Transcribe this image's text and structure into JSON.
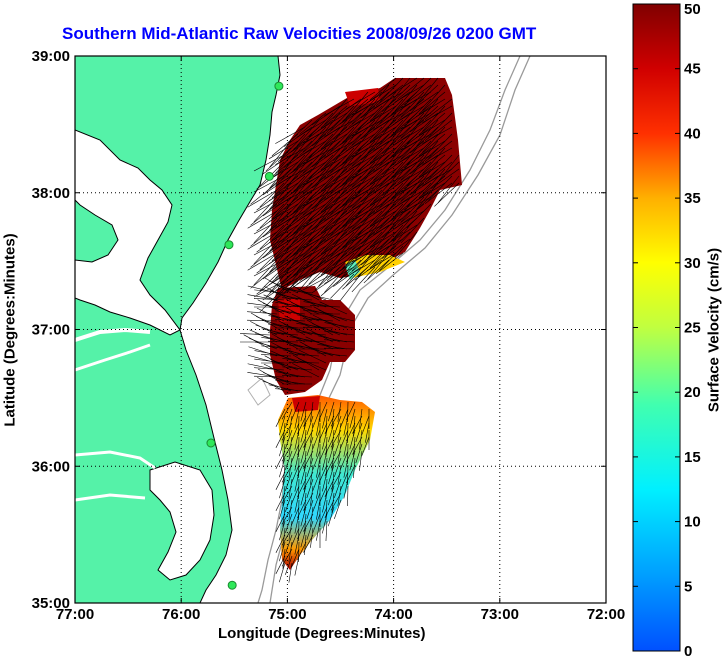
{
  "title": "Southern Mid-Atlantic Raw Velocities 2008/09/26 0200 GMT",
  "map": {
    "xlabel": "Longitude (Degrees:Minutes)",
    "ylabel": "Latitude (Degrees:Minutes)",
    "lon_range": [
      -77,
      -72
    ],
    "lat_range": [
      35,
      39
    ],
    "lon_ticks": [
      {
        "value": -77,
        "label": "77:00"
      },
      {
        "value": -76,
        "label": "76:00"
      },
      {
        "value": -75,
        "label": "75:00"
      },
      {
        "value": -74,
        "label": "74:00"
      },
      {
        "value": -73,
        "label": "73:00"
      },
      {
        "value": -72,
        "label": "72:00"
      }
    ],
    "lat_ticks": [
      {
        "value": 35,
        "label": "35:00"
      },
      {
        "value": 36,
        "label": "36:00"
      },
      {
        "value": 37,
        "label": "37:00"
      },
      {
        "value": 38,
        "label": "38:00"
      },
      {
        "value": 39,
        "label": "39:00"
      }
    ],
    "land_color": "#55f2a8",
    "grid": "dotted"
  },
  "colorbar": {
    "label": "Surface Velocity (cm/s)",
    "range": [
      0,
      50
    ],
    "ticks": [
      {
        "value": 0,
        "label": "0"
      },
      {
        "value": 5,
        "label": "5"
      },
      {
        "value": 10,
        "label": "10"
      },
      {
        "value": 15,
        "label": "15"
      },
      {
        "value": 20,
        "label": "20"
      },
      {
        "value": 25,
        "label": "25"
      },
      {
        "value": 30,
        "label": "30"
      },
      {
        "value": 35,
        "label": "35"
      },
      {
        "value": 40,
        "label": "40"
      },
      {
        "value": 45,
        "label": "45"
      },
      {
        "value": 50,
        "label": "50"
      }
    ],
    "colormap": "jet"
  },
  "stations": [
    {
      "lon": -75.08,
      "lat": 38.78
    },
    {
      "lon": -75.17,
      "lat": 38.12
    },
    {
      "lon": -75.55,
      "lat": 37.62
    },
    {
      "lon": -75.72,
      "lat": 36.17
    },
    {
      "lon": -75.52,
      "lat": 35.13
    }
  ],
  "velocity_fields": [
    {
      "name": "north",
      "speed_cm_s": 49,
      "direction_deg": 230
    },
    {
      "name": "middle",
      "speed_cm_s": 47,
      "direction_deg": 285
    },
    {
      "name": "south",
      "speed_cm_s": 24,
      "direction_deg": 195
    }
  ]
}
